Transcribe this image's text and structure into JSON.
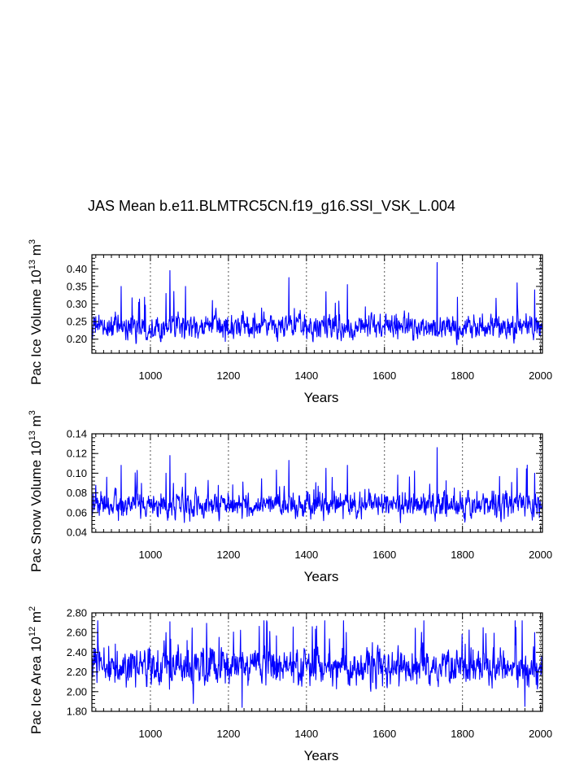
{
  "figure": {
    "title": "JAS Mean b.e11.BLMTRC5CN.f19_g16.SSI_VSK_L.004"
  },
  "colors": {
    "series": "#0000ff",
    "axis": "#000000",
    "gridline": "#555555",
    "background": "#ffffff"
  },
  "chart_data": [
    {
      "type": "line",
      "name": "pac-ice-volume",
      "xlabel": "Years",
      "ylabel": "Pac Ice Volume 10",
      "ylabel_exp": "13",
      "ylabel_unit": "m",
      "ylabel_unit_exp": "3",
      "xlim": [
        850,
        2005
      ],
      "ylim": [
        0.16,
        0.44
      ],
      "xticks": [
        1000,
        1200,
        1400,
        1600,
        1800,
        2000
      ],
      "xtick_labels": [
        "1000",
        "1200",
        "1400",
        "1600",
        "1800",
        "2000"
      ],
      "yticks": [
        0.2,
        0.25,
        0.3,
        0.35,
        0.4
      ],
      "ytick_labels": [
        "0.20",
        "0.25",
        "0.30",
        "0.35",
        "0.40"
      ],
      "vgrid": [
        1000,
        1200,
        1400,
        1600,
        1800,
        2000
      ],
      "grid_style": "dotted vertical",
      "baseline": 0.235,
      "spread": 0.024,
      "min": 0.165,
      "max": 0.42,
      "spikes": [
        [
          925,
          0.35
        ],
        [
          1050,
          0.395
        ],
        [
          1040,
          0.33
        ],
        [
          1090,
          0.35
        ],
        [
          1355,
          0.375
        ],
        [
          1450,
          0.335
        ],
        [
          1505,
          0.355
        ],
        [
          1735,
          0.418
        ],
        [
          1940,
          0.36
        ],
        [
          1985,
          0.34
        ]
      ]
    },
    {
      "type": "line",
      "name": "pac-snow-volume",
      "xlabel": "Years",
      "ylabel": "Pac Snow Volume 10",
      "ylabel_exp": "13",
      "ylabel_unit": "m",
      "ylabel_unit_exp": "3",
      "xlim": [
        850,
        2005
      ],
      "ylim": [
        0.04,
        0.14
      ],
      "xticks": [
        1000,
        1200,
        1400,
        1600,
        1800,
        2000
      ],
      "xtick_labels": [
        "1000",
        "1200",
        "1400",
        "1600",
        "1800",
        "2000"
      ],
      "yticks": [
        0.04,
        0.06,
        0.08,
        0.1,
        0.12,
        0.14
      ],
      "ytick_labels": [
        "0.04",
        "0.06",
        "0.08",
        "0.10",
        "0.12",
        "0.14"
      ],
      "vgrid": [
        1000,
        1200,
        1400,
        1600,
        1800,
        2000
      ],
      "grid_style": "dotted vertical",
      "baseline": 0.068,
      "spread": 0.009,
      "min": 0.045,
      "max": 0.126,
      "spikes": [
        [
          925,
          0.108
        ],
        [
          1050,
          0.118
        ],
        [
          1040,
          0.1
        ],
        [
          1090,
          0.1
        ],
        [
          1355,
          0.113
        ],
        [
          1450,
          0.105
        ],
        [
          1505,
          0.108
        ],
        [
          1735,
          0.126
        ],
        [
          1940,
          0.105
        ],
        [
          1985,
          0.1
        ]
      ]
    },
    {
      "type": "line",
      "name": "pac-ice-area",
      "xlabel": "Years",
      "ylabel": "Pac Ice Area 10",
      "ylabel_exp": "12",
      "ylabel_unit": "m",
      "ylabel_unit_exp": "2",
      "xlim": [
        850,
        2005
      ],
      "ylim": [
        1.8,
        2.8
      ],
      "xticks": [
        1000,
        1200,
        1400,
        1600,
        1800,
        2000
      ],
      "xtick_labels": [
        "1000",
        "1200",
        "1400",
        "1600",
        "1800",
        "2000"
      ],
      "yticks": [
        1.8,
        2.0,
        2.2,
        2.4,
        2.6,
        2.8
      ],
      "ytick_labels": [
        "1.80",
        "2.00",
        "2.20",
        "2.40",
        "2.60",
        "2.80"
      ],
      "vgrid": [
        1000,
        1200,
        1400,
        1600,
        1800,
        2000
      ],
      "grid_style": "dotted vertical",
      "baseline": 2.25,
      "spread": 0.13,
      "min": 1.83,
      "max": 2.72,
      "spikes": [
        [
          1050,
          2.71
        ],
        [
          1040,
          2.6
        ],
        [
          1235,
          1.84
        ],
        [
          1415,
          2.66
        ],
        [
          1935,
          2.72
        ],
        [
          1960,
          1.85
        ],
        [
          1985,
          2.6
        ],
        [
          1110,
          1.88
        ]
      ]
    }
  ]
}
